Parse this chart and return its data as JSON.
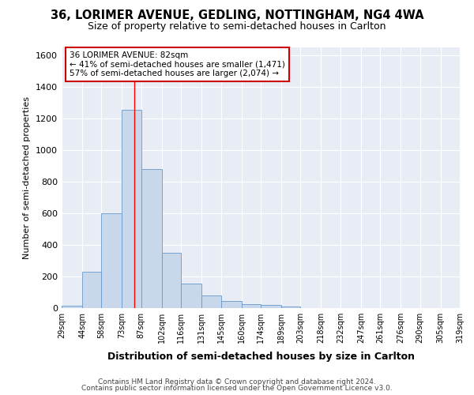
{
  "title": "36, LORIMER AVENUE, GEDLING, NOTTINGHAM, NG4 4WA",
  "subtitle": "Size of property relative to semi-detached houses in Carlton",
  "xlabel": "Distribution of semi-detached houses by size in Carlton",
  "ylabel": "Number of semi-detached properties",
  "bar_color": "#c8d8ea",
  "bar_edge_color": "#6699cc",
  "background_color": "#e8edf5",
  "annotation_line1": "36 LORIMER AVENUE: 82sqm",
  "annotation_line2": "← 41% of semi-detached houses are smaller (1,471)",
  "annotation_line3": "57% of semi-detached houses are larger (2,074) →",
  "vline_x": 82,
  "vline_color": "red",
  "bins": [
    29,
    44,
    58,
    73,
    87,
    102,
    116,
    131,
    145,
    160,
    174,
    189,
    203,
    218,
    232,
    247,
    261,
    276,
    290,
    305,
    319
  ],
  "counts": [
    15,
    230,
    600,
    1255,
    880,
    350,
    155,
    80,
    45,
    25,
    20,
    10,
    0,
    0,
    0,
    0,
    0,
    0,
    0,
    0
  ],
  "yticks": [
    0,
    200,
    400,
    600,
    800,
    1000,
    1200,
    1400,
    1600
  ],
  "ylim": [
    0,
    1650
  ],
  "footer1": "Contains HM Land Registry data © Crown copyright and database right 2024.",
  "footer2": "Contains public sector information licensed under the Open Government Licence v3.0."
}
